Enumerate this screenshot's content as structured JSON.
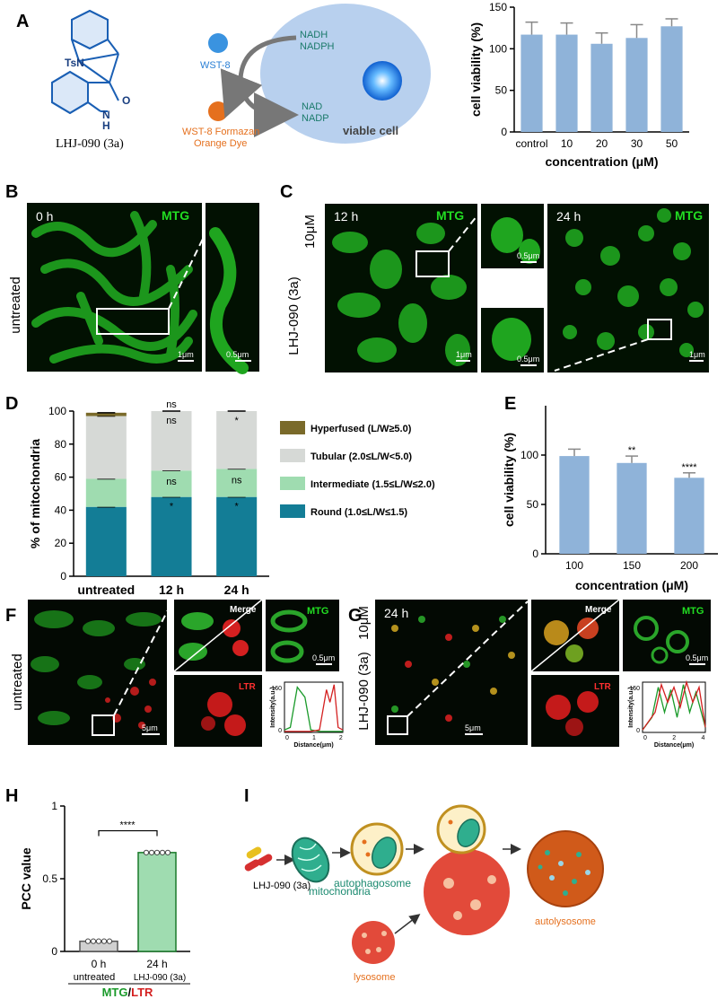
{
  "panels": {
    "A": "A",
    "B": "B",
    "C": "C",
    "D": "D",
    "E": "E",
    "F": "F",
    "G": "G",
    "H": "H",
    "I": "I"
  },
  "panel_a": {
    "structure_group": "TsN",
    "structure_atom_o": "O",
    "structure_atom_n": "N",
    "structure_atom_h": "H",
    "compound_name": "LHJ-090 (3a)",
    "wst8": "WST-8",
    "formazan_line1": "WST-8 Formazan",
    "formazan_line2": "Orange Dye",
    "nadh": "NADH",
    "nadph": "NADPH",
    "nad": "NAD",
    "nadp": "NADP",
    "viable_cell": "viable cell",
    "bar_color": "#8fb3d9"
  },
  "panel_b": {
    "time": "0 h",
    "stain": "MTG",
    "side_label": "untreated",
    "scale1": "1μm",
    "scale2": "0.5μm"
  },
  "panel_c": {
    "time1": "12 h",
    "time2": "24 h",
    "stain": "MTG",
    "side_label": "LHJ-090 (3a)",
    "dose": "10μM",
    "scale_1um": "1μm",
    "scale_05um": "0.5μm"
  },
  "panel_d_legend": [
    {
      "label": "Hyperfused (L/W≥5.0)",
      "color": "#7a6a2a"
    },
    {
      "label": "Tubular (2.0≤L/W<5.0)",
      "color": "#d6d9d6"
    },
    {
      "label": "Intermediate (1.5≤L/W≤2.0)",
      "color": "#9fdcb0"
    },
    {
      "label": "Round (1.0≤L/W≤1.5)",
      "color": "#137d96"
    }
  ],
  "panel_d_sig": {
    "ns": "ns",
    "star": "*"
  },
  "panel_f": {
    "side_label": "untreated",
    "merge": "Merge",
    "mtg": "MTG",
    "ltr": "LTR",
    "scale_main": "5μm",
    "scale_inset": "0.5μm",
    "profile_ylabel": "Intensity(a.u.)",
    "profile_xlabel": "Distance(μm)",
    "profile_yticks": [
      "0",
      "160"
    ],
    "profile_xticks": [
      "0",
      "1",
      "2"
    ]
  },
  "panel_g": {
    "time": "24 h",
    "side_label": "LHJ-090 (3a)",
    "dose": "10μM",
    "merge": "Merge",
    "mtg": "MTG",
    "ltr": "LTR",
    "scale_main": "5μm",
    "scale_inset": "0.5μm",
    "profile_ylabel": "Intensity(a.u.)",
    "profile_xlabel": "Distance(μm)",
    "profile_yticks": [
      "0",
      "150"
    ],
    "profile_xticks": [
      "0",
      "2",
      "4"
    ]
  },
  "panel_h": {
    "sig": "****",
    "cat1_time": "0 h",
    "cat1_group": "untreated",
    "cat2_time": "24 h",
    "cat2_group": "LHJ-090 (3a)",
    "label_mtg": "MTG",
    "label_sep": "/",
    "label_ltr": "LTR"
  },
  "panel_i": {
    "drug": "LHJ-090 (3a)",
    "mitochondria": "mitochondria",
    "autophagosome": "autophagosome",
    "lysosome": "lysosome",
    "autolysosome": "autolysosome"
  },
  "chart_data": [
    {
      "id": "A",
      "type": "bar",
      "categories": [
        "control",
        "10",
        "20",
        "30",
        "50"
      ],
      "values": [
        117,
        117,
        106,
        113,
        127
      ],
      "errors": [
        15,
        14,
        13,
        16,
        9
      ],
      "ylabel": "cell viability (%)",
      "xlabel": "concentration (μM)",
      "ylim": [
        0,
        150
      ],
      "yticks": [
        0,
        50,
        100,
        150
      ],
      "grid": false
    },
    {
      "id": "D",
      "type": "bar",
      "stacked": true,
      "categories": [
        "untreated",
        "12 h",
        "24 h"
      ],
      "ylabel": "% of mitochondria",
      "ylim": [
        0,
        100
      ],
      "yticks": [
        0,
        20,
        40,
        60,
        80,
        100
      ],
      "series": [
        {
          "name": "Round (1.0≤L/W≤1.5)",
          "values": [
            42,
            48,
            48
          ]
        },
        {
          "name": "Intermediate (1.5≤L/W≤2.0)",
          "values": [
            17,
            16,
            17
          ]
        },
        {
          "name": "Tubular (2.0≤L/W<5.0)",
          "values": [
            38,
            36,
            35
          ]
        },
        {
          "name": "Hyperfused (L/W≥5.0)",
          "values": [
            2,
            0,
            0
          ]
        }
      ],
      "legend": "right"
    },
    {
      "id": "E",
      "type": "bar",
      "categories": [
        "100",
        "150",
        "200"
      ],
      "values": [
        99,
        92,
        77
      ],
      "errors": [
        7,
        7,
        5
      ],
      "annotations": [
        "",
        "**",
        "****"
      ],
      "ylabel": "cell viability (%)",
      "xlabel": "concentration (μM)",
      "ylim": [
        0,
        150
      ],
      "yticks": [
        0,
        50,
        100
      ],
      "grid": false
    },
    {
      "id": "H",
      "type": "bar",
      "categories": [
        "0 h",
        "24 h"
      ],
      "values": [
        0.07,
        0.68
      ],
      "points": [
        [
          0.07,
          0.07,
          0.07,
          0.07,
          0.07
        ],
        [
          0.68,
          0.68,
          0.68,
          0.68,
          0.68
        ]
      ],
      "ylabel": "PCC value",
      "ylim": [
        0,
        1
      ],
      "yticks": [
        0,
        0.5,
        1
      ]
    }
  ]
}
